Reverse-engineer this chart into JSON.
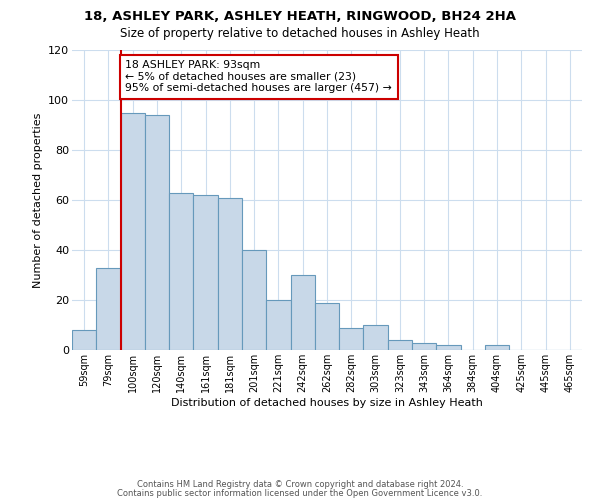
{
  "title": "18, ASHLEY PARK, ASHLEY HEATH, RINGWOOD, BH24 2HA",
  "subtitle": "Size of property relative to detached houses in Ashley Heath",
  "xlabel": "Distribution of detached houses by size in Ashley Heath",
  "ylabel": "Number of detached properties",
  "bar_color": "#c8d8e8",
  "bar_edge_color": "#6699bb",
  "background_color": "#ffffff",
  "gridcolor": "#ccddee",
  "bins": [
    "59sqm",
    "79sqm",
    "100sqm",
    "120sqm",
    "140sqm",
    "161sqm",
    "181sqm",
    "201sqm",
    "221sqm",
    "242sqm",
    "262sqm",
    "282sqm",
    "303sqm",
    "323sqm",
    "343sqm",
    "364sqm",
    "384sqm",
    "404sqm",
    "425sqm",
    "445sqm",
    "465sqm"
  ],
  "values": [
    8,
    33,
    95,
    94,
    63,
    62,
    61,
    40,
    20,
    30,
    19,
    9,
    10,
    4,
    3,
    2,
    0,
    2,
    0,
    0,
    0
  ],
  "vline_pos": 1.5,
  "vline_color": "#cc0000",
  "annotation_text": "18 ASHLEY PARK: 93sqm\n← 5% of detached houses are smaller (23)\n95% of semi-detached houses are larger (457) →",
  "annotation_box_color": "#ffffff",
  "annotation_box_edge_color": "#cc0000",
  "ylim": [
    0,
    120
  ],
  "yticks": [
    0,
    20,
    40,
    60,
    80,
    100,
    120
  ],
  "footnote1": "Contains HM Land Registry data © Crown copyright and database right 2024.",
  "footnote2": "Contains public sector information licensed under the Open Government Licence v3.0."
}
